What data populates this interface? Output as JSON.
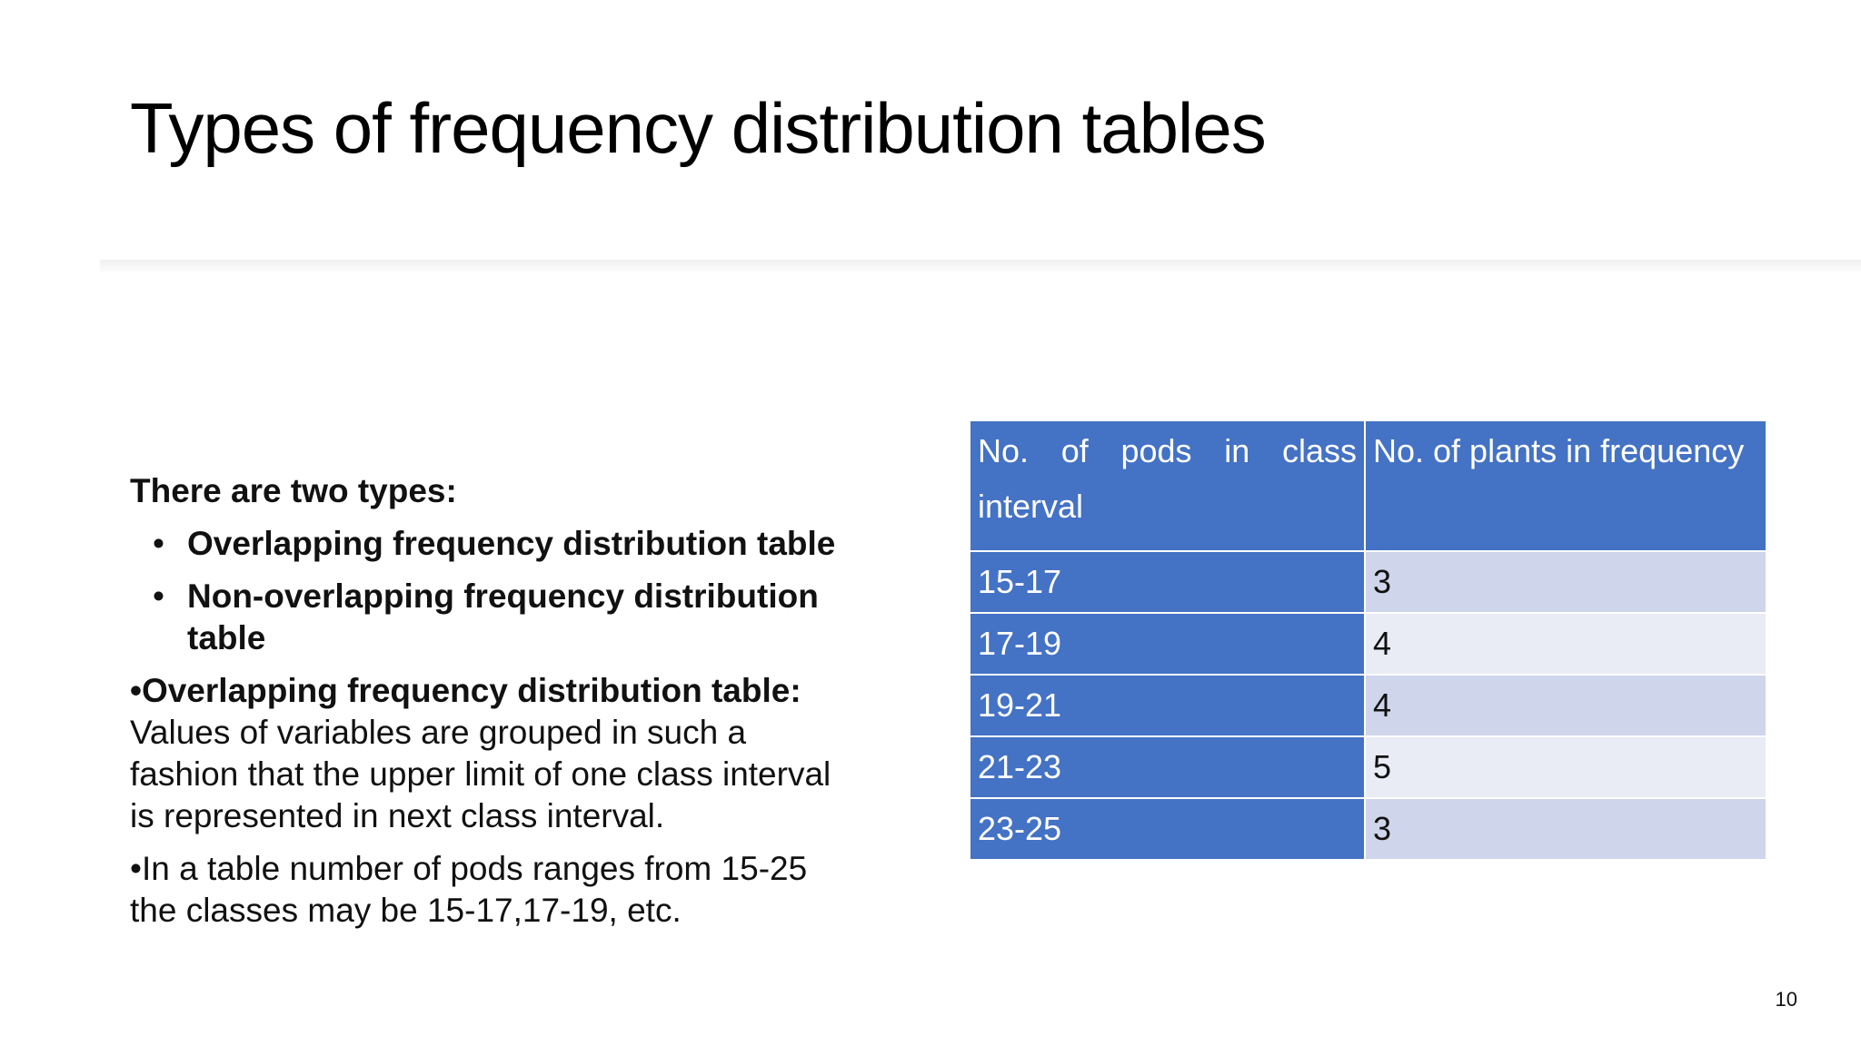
{
  "slide": {
    "title": "Types of frequency distribution tables",
    "page_number": "10"
  },
  "body": {
    "intro": "There are two types:",
    "types": [
      "Overlapping frequency distribution table",
      "Non-overlapping frequency distribution table"
    ],
    "bullet_glyph": "•",
    "para1_lead": "•Overlapping frequency distribution table:",
    "para1_text": "Values of variables are grouped in such a fashion that the upper limit of one class interval is represented in next class interval.",
    "para2_text": "•In a table number of pods ranges from 15-25 the classes may be 15-17,17-19, etc."
  },
  "table": {
    "headers": [
      "No. of pods in class interval",
      "No. of plants in frequency"
    ],
    "rows": [
      {
        "interval": "15-17",
        "frequency": "3"
      },
      {
        "interval": "17-19",
        "frequency": "4"
      },
      {
        "interval": "19-21",
        "frequency": "4"
      },
      {
        "interval": "21-23",
        "frequency": "5"
      },
      {
        "interval": "23-25",
        "frequency": "3"
      }
    ],
    "colors": {
      "header_bg": "#4472c4",
      "row_odd_bg": "#cfd5ea",
      "row_even_bg": "#e9ebf5"
    }
  }
}
